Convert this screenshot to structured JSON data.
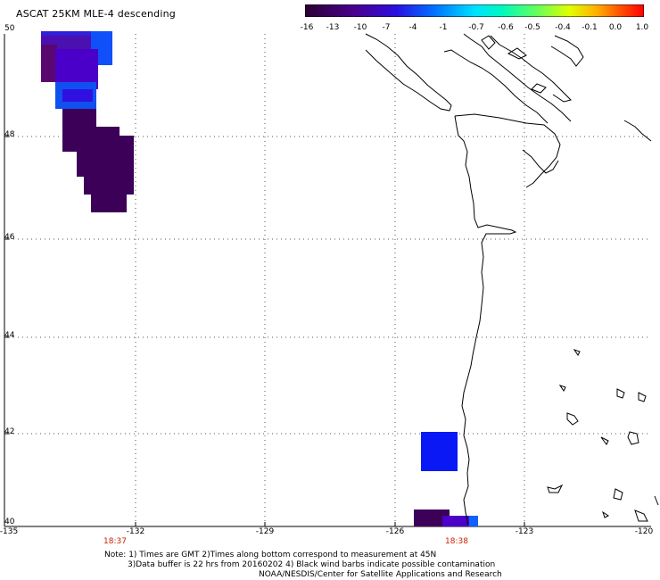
{
  "title": "ASCAT 25KM MLE-4 descending",
  "colorbar": {
    "labels": [
      "-16",
      "-13",
      "-10",
      "-7",
      "-4",
      "-1",
      "-0.7",
      "-0.6",
      "-0.5",
      "-0.4",
      "-0.1",
      "0.0",
      "1.0"
    ],
    "colors": [
      "#3a0040",
      "#4a0090",
      "#2a10e0",
      "#0040ff",
      "#0090ff",
      "#00c8ff",
      "#00f0d0",
      "#40ff80",
      "#a0ff30",
      "#ffff00",
      "#ffa000",
      "#ff4000",
      "#ff0000"
    ]
  },
  "map": {
    "lat_labels": [
      "50",
      "48",
      "46",
      "44",
      "42",
      "40"
    ],
    "lon_labels": [
      "-135",
      "-132",
      "-129",
      "-126",
      "-123",
      "-120"
    ],
    "times": [
      "18:37",
      "18:38"
    ],
    "swath_colors": {
      "purple": "#3c0050",
      "indigo": "#4a00c0",
      "blue": "#1020f0",
      "light_blue": "#0050ff"
    }
  },
  "notes": {
    "line1": "Note: 1) Times are GMT 2)Times along bottom correspond to measurement at 45N",
    "line2": "3)Data buffer is 22 hrs from 20160202 4) Black wind barbs indicate possible contamination",
    "line3": "NOAA/NESDIS/Center for Satellite Applications and Research"
  }
}
